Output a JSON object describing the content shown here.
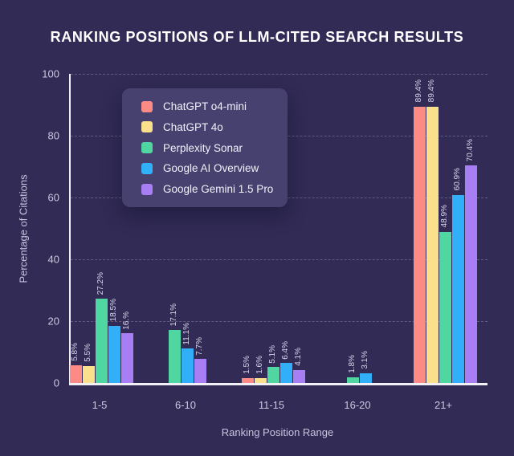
{
  "title": "RANKING POSITIONS OF LLM-CITED SEARCH RESULTS",
  "chart_data": {
    "type": "bar",
    "title": "RANKING POSITIONS OF LLM-CITED SEARCH RESULTS",
    "xlabel": "Ranking Position Range",
    "ylabel": "Percentage of Citations",
    "categories": [
      "1-5",
      "6-10",
      "11-15",
      "16-20",
      "21+"
    ],
    "ylim": [
      0,
      100
    ],
    "yticks": [
      0,
      20,
      40,
      60,
      80,
      100
    ],
    "grid": "horizontal-dashed",
    "legend_position": "upper-left-inside",
    "series": [
      {
        "name": "ChatGPT o4-mini",
        "color": "#FB8B84",
        "values": [
          5.8,
          0,
          1.5,
          0,
          89.4
        ],
        "labels": [
          "5.8%",
          null,
          "1.5%",
          null,
          "89.4%"
        ]
      },
      {
        "name": "ChatGPT 4o",
        "color": "#FADF8C",
        "values": [
          5.5,
          0,
          1.6,
          0,
          89.4
        ],
        "labels": [
          "5.5%",
          null,
          "1.6%",
          null,
          "89.4%"
        ]
      },
      {
        "name": "Perplexity Sonar",
        "color": "#50D6A0",
        "values": [
          27.2,
          17.1,
          5.1,
          1.8,
          48.9
        ],
        "labels": [
          "27.2%",
          "17.1%",
          "5.1%",
          "1.8%",
          "48.9%"
        ]
      },
      {
        "name": "Google AI Overview",
        "color": "#31AFF8",
        "values": [
          18.5,
          11.1,
          6.4,
          3.1,
          60.9
        ],
        "labels": [
          "18.5%",
          "11.1%",
          "6.4%",
          "3.1%",
          "60.9%"
        ]
      },
      {
        "name": "Google Gemini 1.5 Pro",
        "color": "#A77EF4",
        "values": [
          16.0,
          7.7,
          4.1,
          0,
          70.4
        ],
        "labels": [
          "16.%",
          "7.7%",
          "4.1%",
          null,
          "70.4%"
        ]
      }
    ]
  },
  "colors": {
    "background": "#312B55",
    "legend_background": "#46416F",
    "axis": "#F2F1F7",
    "tick_text": "#CCC8E0",
    "value_label_text": "#D9D5EB",
    "title_text": "#FFFFFF"
  }
}
